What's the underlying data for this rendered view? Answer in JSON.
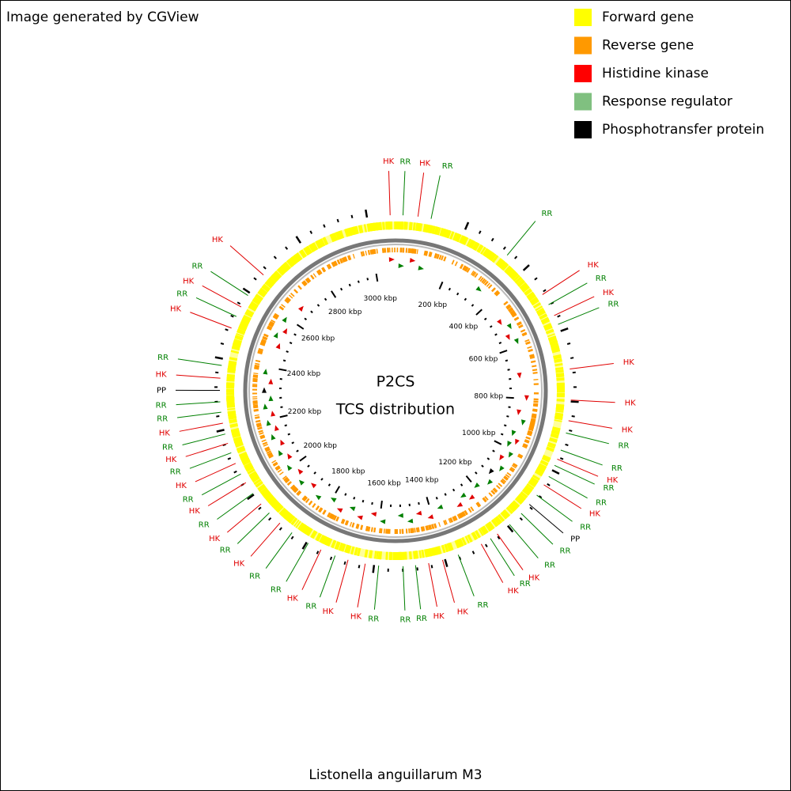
{
  "header": {
    "title": "Image generated by CGView"
  },
  "legend": [
    {
      "label": "Forward gene",
      "color": "#ffff00"
    },
    {
      "label": "Reverse gene",
      "color": "#ff9900"
    },
    {
      "label": "Histidine kinase",
      "color": "#ff0000"
    },
    {
      "label": "Response regulator",
      "color": "#80c080"
    },
    {
      "label": "Phosphotransfer protein",
      "color": "#000000"
    }
  ],
  "center": {
    "line1": "P2CS",
    "line2": "TCS distribution"
  },
  "footer": {
    "organism": "Listonella anguillarum M3"
  },
  "genome_length_kbp": 3080,
  "ticks": [
    {
      "value": 200,
      "label": "200 kbp"
    },
    {
      "value": 400,
      "label": "400 kbp"
    },
    {
      "value": 600,
      "label": "600 kbp"
    },
    {
      "value": 800,
      "label": "800 kbp"
    },
    {
      "value": 1000,
      "label": "1000 kbp"
    },
    {
      "value": 1200,
      "label": "1200 kbp"
    },
    {
      "value": 1400,
      "label": "1400 kbp"
    },
    {
      "value": 1600,
      "label": "1600 kbp"
    },
    {
      "value": 1800,
      "label": "1800 kbp"
    },
    {
      "value": 2000,
      "label": "2000 kbp"
    },
    {
      "value": 2200,
      "label": "2200 kbp"
    },
    {
      "value": 2400,
      "label": "2400 kbp"
    },
    {
      "value": 2600,
      "label": "2600 kbp"
    },
    {
      "value": 2800,
      "label": "2800 kbp"
    },
    {
      "value": 3000,
      "label": "3000 kbp"
    }
  ],
  "features": [
    {
      "label": "HK",
      "color": "#e00000",
      "position_kbp": 3065
    },
    {
      "label": "RR",
      "color": "#008000",
      "position_kbp": 21
    },
    {
      "label": "HK",
      "color": "#e00000",
      "position_kbp": 63
    },
    {
      "label": "RR",
      "color": "#008000",
      "position_kbp": 100
    },
    {
      "label": "RR",
      "color": "#008000",
      "position_kbp": 338
    },
    {
      "label": "HK",
      "color": "#e00000",
      "position_kbp": 486
    },
    {
      "label": "RR",
      "color": "#008000",
      "position_kbp": 519
    },
    {
      "label": "HK",
      "color": "#e00000",
      "position_kbp": 553
    },
    {
      "label": "RR",
      "color": "#008000",
      "position_kbp": 580
    },
    {
      "label": "HK",
      "color": "#e00000",
      "position_kbp": 709
    },
    {
      "label": "HK",
      "color": "#e00000",
      "position_kbp": 796
    },
    {
      "label": "HK",
      "color": "#e00000",
      "position_kbp": 854
    },
    {
      "label": "RR",
      "color": "#008000",
      "position_kbp": 889
    },
    {
      "label": "RR",
      "color": "#008000",
      "position_kbp": 939
    },
    {
      "label": "HK",
      "color": "#e00000",
      "position_kbp": 966
    },
    {
      "label": "RR",
      "color": "#008000",
      "position_kbp": 985
    },
    {
      "label": "RR",
      "color": "#008000",
      "position_kbp": 1020
    },
    {
      "label": "HK",
      "color": "#e00000",
      "position_kbp": 1047
    },
    {
      "label": "RR",
      "color": "#008000",
      "position_kbp": 1082
    },
    {
      "label": "PP",
      "color": "#000000",
      "position_kbp": 1115
    },
    {
      "label": "RR",
      "color": "#008000",
      "position_kbp": 1149
    },
    {
      "label": "RR",
      "color": "#008000",
      "position_kbp": 1194
    },
    {
      "label": "HK",
      "color": "#e00000",
      "position_kbp": 1237
    },
    {
      "label": "RR",
      "color": "#008000",
      "position_kbp": 1260
    },
    {
      "label": "HK",
      "color": "#e00000",
      "position_kbp": 1290
    },
    {
      "label": "RR",
      "color": "#008000",
      "position_kbp": 1361
    },
    {
      "label": "HK",
      "color": "#e00000",
      "position_kbp": 1407
    },
    {
      "label": "HK",
      "color": "#e00000",
      "position_kbp": 1447
    },
    {
      "label": "RR",
      "color": "#008000",
      "position_kbp": 1484
    },
    {
      "label": "RR",
      "color": "#008000",
      "position_kbp": 1519
    },
    {
      "label": "RR",
      "color": "#008000",
      "position_kbp": 1587
    },
    {
      "label": "HK",
      "color": "#e00000",
      "position_kbp": 1625
    },
    {
      "label": "HK",
      "color": "#e00000",
      "position_kbp": 1674
    },
    {
      "label": "RR",
      "color": "#008000",
      "position_kbp": 1712
    },
    {
      "label": "HK",
      "color": "#e00000",
      "position_kbp": 1755
    },
    {
      "label": "RR",
      "color": "#008000",
      "position_kbp": 1795
    },
    {
      "label": "RR",
      "color": "#008000",
      "position_kbp": 1849
    },
    {
      "label": "HK",
      "color": "#e00000",
      "position_kbp": 1892
    },
    {
      "label": "RR",
      "color": "#008000",
      "position_kbp": 1933
    },
    {
      "label": "HK",
      "color": "#e00000",
      "position_kbp": 1967
    },
    {
      "label": "RR",
      "color": "#008000",
      "position_kbp": 2004
    },
    {
      "label": "HK",
      "color": "#e00000",
      "position_kbp": 2040
    },
    {
      "label": "RR",
      "color": "#008000",
      "position_kbp": 2068
    },
    {
      "label": "HK",
      "color": "#e00000",
      "position_kbp": 2101
    },
    {
      "label": "RR",
      "color": "#008000",
      "position_kbp": 2133
    },
    {
      "label": "HK",
      "color": "#e00000",
      "position_kbp": 2161
    },
    {
      "label": "RR",
      "color": "#008000",
      "position_kbp": 2188
    },
    {
      "label": "HK",
      "color": "#e00000",
      "position_kbp": 2219
    },
    {
      "label": "RR",
      "color": "#008000",
      "position_kbp": 2250
    },
    {
      "label": "RR",
      "color": "#008000",
      "position_kbp": 2279
    },
    {
      "label": "PP",
      "color": "#000000",
      "position_kbp": 2311
    },
    {
      "label": "HK",
      "color": "#e00000",
      "position_kbp": 2345
    },
    {
      "label": "RR",
      "color": "#008000",
      "position_kbp": 2381
    },
    {
      "label": "HK",
      "color": "#e00000",
      "position_kbp": 2489
    },
    {
      "label": "RR",
      "color": "#008000",
      "position_kbp": 2524
    },
    {
      "label": "HK",
      "color": "#e00000",
      "position_kbp": 2554
    },
    {
      "label": "RR",
      "color": "#008000",
      "position_kbp": 2591
    },
    {
      "label": "HK",
      "color": "#e00000",
      "position_kbp": 2663
    }
  ]
}
